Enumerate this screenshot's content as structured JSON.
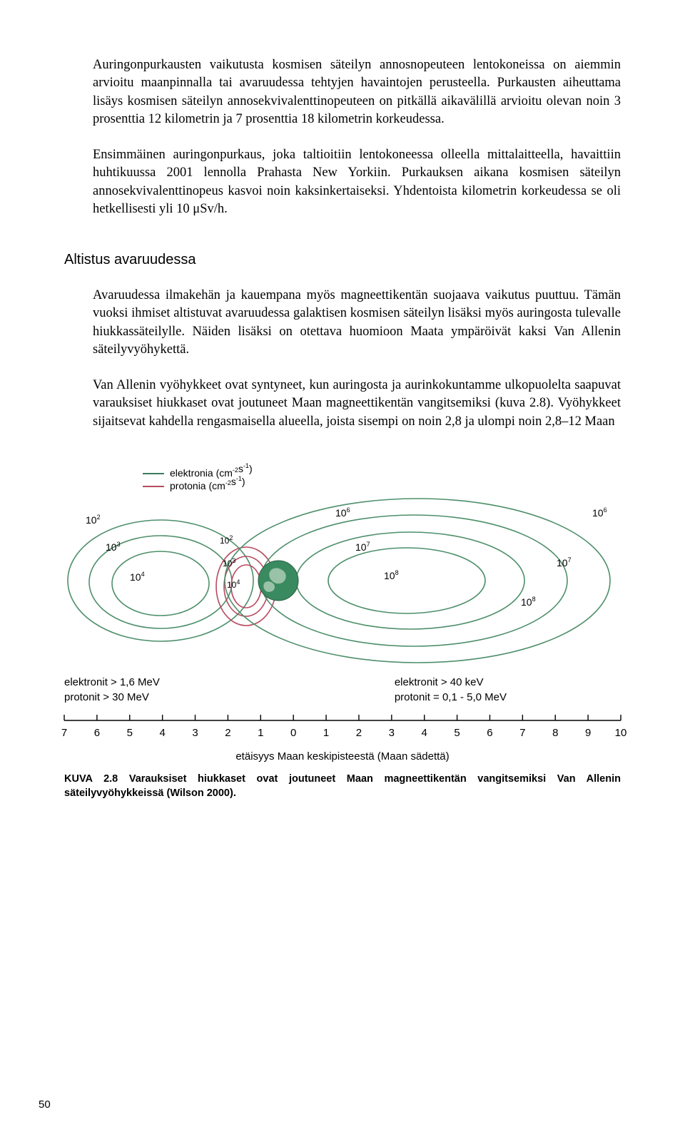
{
  "paragraphs": {
    "p1": "Auringonpurkausten vaikutusta kosmisen säteilyn annosnopeuteen lentokoneissa on aiemmin arvioitu maanpinnalla tai avaruudessa tehtyjen havaintojen perusteella. Purkausten aiheuttama lisäys kosmisen säteilyn annosekvivalenttinopeuteen on pitkällä aikavälillä arvioitu olevan noin 3 prosenttia 12 kilometrin ja 7 prosenttia 18 kilometrin korkeudessa.",
    "p2": "Ensimmäinen auringonpurkaus, joka taltioitiin lentokoneessa olleella mittalaitteella, havaittiin huhtikuussa 2001 lennolla Prahasta New Yorkiin. Purkauksen aikana kosmisen säteilyn annosekvivalenttinopeus kasvoi noin kaksinkertaiseksi. Yhdentoista kilometrin korkeudessa se oli hetkellisesti yli 10 μSv/h.",
    "p3": "Avaruudessa ilmakehän ja kauempana myös magneettikentän suojaava vaikutus puuttuu. Tämän vuoksi ihmiset altistuvat avaruudessa galaktisen kosmisen säteilyn lisäksi myös auringosta tulevalle hiukkassäteilylle. Näiden lisäksi on otettava huomioon Maata ympäröivät kaksi Van Allenin säteilyvyöhykettä.",
    "p4": "Van Allenin vyöhykkeet ovat syntyneet, kun auringosta ja aurinkokuntamme ulkopuolelta saapuvat varauksiset hiukkaset ovat joutuneet Maan magneettikentän vangitsemiksi (kuva 2.8). Vyöhykkeet sijaitsevat kahdella rengasmaisella alueella, joista sisempi on noin 2,8 ja ulompi noin 2,8–12 Maan"
  },
  "heading": "Altistus avaruudessa",
  "chart": {
    "legend_top": {
      "line1": "elektronia (cm⁻²s⁻¹)",
      "line2": "protonia (cm⁻²s⁻¹)",
      "electron_color": "#3a7d5a",
      "proton_color": "#b8495f"
    },
    "inner_belt": {
      "contours": [
        {
          "label": "10²",
          "level": 2,
          "color": "#4d8f6a"
        },
        {
          "label": "10³",
          "level": 3,
          "color": "#4d8f6a"
        },
        {
          "label": "10⁴",
          "level": 4,
          "color": "#4d8f6a"
        }
      ],
      "proton_contours": [
        {
          "label": "10²",
          "level": 2,
          "color": "#b8495f"
        },
        {
          "label": "10³",
          "level": 3,
          "color": "#b8495f"
        },
        {
          "label": "10⁴",
          "level": 4,
          "color": "#b8495f"
        }
      ]
    },
    "outer_belt": {
      "contours": [
        {
          "label": "10⁶",
          "level": 6,
          "color": "#4d8f6a"
        },
        {
          "label": "10⁷",
          "level": 7,
          "color": "#4d8f6a"
        },
        {
          "label": "10⁸",
          "level": 8,
          "color": "#4d8f6a"
        }
      ],
      "right_contours": [
        {
          "label": "10⁶",
          "level": 6,
          "color": "#4d8f6a"
        },
        {
          "label": "10⁷",
          "level": 7,
          "color": "#4d8f6a"
        },
        {
          "label": "10⁸",
          "level": 8,
          "color": "#4d8f6a"
        }
      ]
    },
    "earth_color": "#3a8a5f",
    "legend_bottom_left": {
      "line1": "elektronit > 1,6 MeV",
      "line2": "protonit > 30 MeV"
    },
    "legend_bottom_right": {
      "line1": "elektronit > 40 keV",
      "line2": "protonit = 0,1 - 5,0 MeV"
    },
    "axis": {
      "ticks": [
        7,
        6,
        5,
        4,
        3,
        2,
        1,
        0,
        1,
        2,
        3,
        4,
        5,
        6,
        7,
        8,
        9,
        10
      ],
      "label": "etäisyys Maan keskipisteestä (Maan sädettä)"
    },
    "caption": "KUVA 2.8 Varauksiset hiukkaset ovat joutuneet Maan magneettikentän vangitsemiksi Van Allenin säteilyvyöhykkeissä (Wilson 2000)."
  },
  "page_number": "50"
}
